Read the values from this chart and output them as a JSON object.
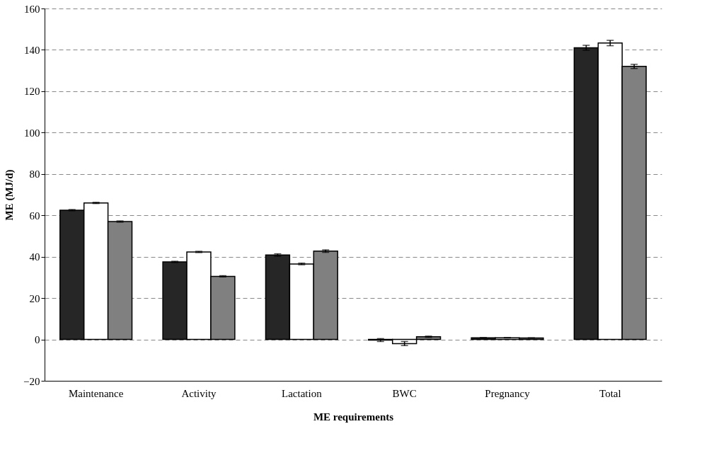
{
  "chart_data": {
    "type": "bar",
    "xlabel": "ME requirements",
    "ylabel": "ME (MJ/d)",
    "categories": [
      "Maintenance",
      "Activity",
      "Lactation",
      "BWC",
      "Pregnancy",
      "Total"
    ],
    "series": [
      {
        "color": "#262626",
        "values": [
          62.5,
          37.5,
          40.8,
          -0.3,
          0.8,
          141.0
        ],
        "errors": [
          0.3,
          0.3,
          0.6,
          0.7,
          0.1,
          1.2
        ]
      },
      {
        "color": "#ffffff",
        "values": [
          66.0,
          42.3,
          36.5,
          -2.0,
          0.8,
          143.3
        ],
        "errors": [
          0.3,
          0.3,
          0.4,
          1.0,
          0.1,
          1.3
        ]
      },
      {
        "color": "#808080",
        "values": [
          57.0,
          30.5,
          42.7,
          1.3,
          0.7,
          132.0
        ],
        "errors": [
          0.3,
          0.3,
          0.6,
          0.3,
          0.1,
          1.0
        ]
      }
    ],
    "ylim": [
      -20,
      160
    ],
    "yticks": [
      -20,
      0,
      20,
      40,
      60,
      80,
      100,
      120,
      140,
      160
    ],
    "grid": "y",
    "legend": false
  }
}
